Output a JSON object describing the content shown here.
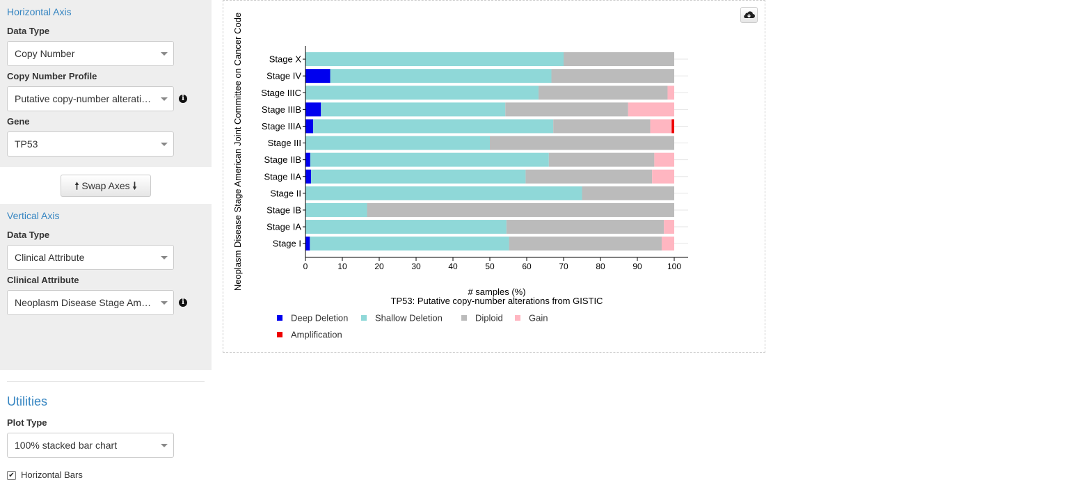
{
  "horizontal_axis": {
    "title": "Horizontal Axis",
    "data_type_label": "Data Type",
    "data_type_value": "Copy Number",
    "profile_label": "Copy Number Profile",
    "profile_value": "Putative copy-number alterations from GISTIC",
    "gene_label": "Gene",
    "gene_value": "TP53"
  },
  "swap_button": {
    "label": "Swap Axes"
  },
  "vertical_axis": {
    "title": "Vertical Axis",
    "data_type_label": "Data Type",
    "data_type_value": "Clinical Attribute",
    "attribute_label": "Clinical Attribute",
    "attribute_value": "Neoplasm Disease Stage American Joint Committee on Cancer Code"
  },
  "utilities": {
    "title": "Utilities",
    "plot_type_label": "Plot Type",
    "plot_type_value": "100% stacked bar chart",
    "horizontal_bars_label": "Horizontal Bars",
    "horizontal_bars_checked": true
  },
  "icons": {
    "info": "info-icon",
    "download": "cloud-download-icon",
    "swap_up": "arrow-up-icon",
    "swap_down": "arrow-down-icon"
  },
  "chart_data": {
    "type": "bar",
    "orientation": "horizontal",
    "stacked": "100%",
    "title": "TP53: Putative copy-number alterations from GISTIC",
    "xlabel": "# samples (%)",
    "ylabel": "Neoplasm Disease Stage American Joint Committee on Cancer Code",
    "xlim": [
      0,
      100
    ],
    "xticks": [
      0,
      10,
      20,
      30,
      40,
      50,
      60,
      70,
      80,
      90,
      100
    ],
    "categories": [
      "Stage X",
      "Stage IV",
      "Stage IIIC",
      "Stage IIIB",
      "Stage IIIA",
      "Stage III",
      "Stage IIB",
      "Stage IIA",
      "Stage II",
      "Stage IB",
      "Stage IA",
      "Stage I"
    ],
    "series": [
      {
        "name": "Deep Deletion",
        "color": "#0000ee",
        "values": [
          0,
          6.7,
          0,
          4.2,
          2.1,
          0,
          1.3,
          1.5,
          0,
          0,
          0,
          1.2
        ]
      },
      {
        "name": "Shallow Deletion",
        "color": "#8fd8d8",
        "values": [
          70,
          60,
          63.2,
          50,
          65.1,
          50,
          64.7,
          58.2,
          75,
          16.7,
          54.5,
          54
        ]
      },
      {
        "name": "Diploid",
        "color": "#bbbbbb",
        "values": [
          30,
          33.3,
          35,
          33.3,
          26.3,
          50,
          28.6,
          34.3,
          25,
          83.3,
          42.7,
          41.4
        ]
      },
      {
        "name": "Gain",
        "color": "#ffb6c1",
        "values": [
          0,
          0,
          1.8,
          12.5,
          5.8,
          0,
          5.4,
          6,
          0,
          0,
          2.8,
          3.4
        ]
      },
      {
        "name": "Amplification",
        "color": "#ee0000",
        "values": [
          0,
          0,
          0,
          0,
          0.7,
          0,
          0,
          0,
          0,
          0,
          0,
          0
        ]
      }
    ],
    "legend_placement": "bottom"
  }
}
